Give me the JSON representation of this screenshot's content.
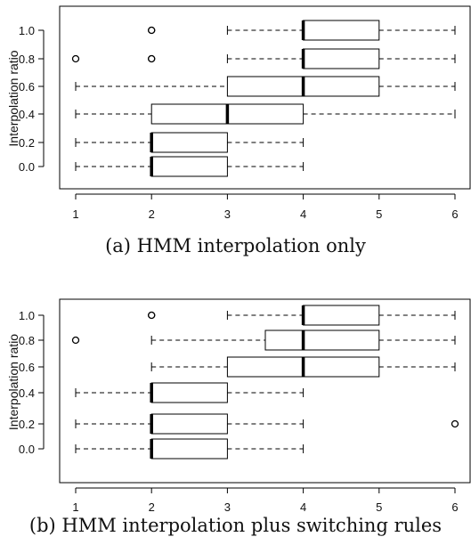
{
  "chart_data": [
    {
      "type": "boxplot",
      "orientation": "horizontal",
      "caption": "(a) HMM interpolation only",
      "ylabel": "Interpolation ratio",
      "xlabel": "",
      "xlim": [
        0.8,
        6.2
      ],
      "xticks": [
        1,
        2,
        3,
        4,
        5,
        6
      ],
      "categories": [
        "0.0",
        "0.2",
        "0.4",
        "0.6",
        "0.8",
        "1.0"
      ],
      "boxes": [
        {
          "category": "0.0",
          "min": 1,
          "q1": 2,
          "median": 2,
          "q3": 3,
          "max": 4,
          "outliers": []
        },
        {
          "category": "0.2",
          "min": 1,
          "q1": 2,
          "median": 2,
          "q3": 3,
          "max": 4,
          "outliers": []
        },
        {
          "category": "0.4",
          "min": 1,
          "q1": 2,
          "median": 3,
          "q3": 4,
          "max": 6,
          "outliers": []
        },
        {
          "category": "0.6",
          "min": 1,
          "q1": 3,
          "median": 4,
          "q3": 5,
          "max": 6,
          "outliers": []
        },
        {
          "category": "0.8",
          "min": 3,
          "q1": 4,
          "median": 4,
          "q3": 5,
          "max": 6,
          "outliers": [
            1,
            2,
            2
          ]
        },
        {
          "category": "1.0",
          "min": 3,
          "q1": 4,
          "median": 4,
          "q3": 5,
          "max": 6,
          "outliers": [
            2,
            2
          ]
        }
      ]
    },
    {
      "type": "boxplot",
      "orientation": "horizontal",
      "caption": "(b) HMM interpolation plus switching rules",
      "ylabel": "Interpolation ratio",
      "xlabel": "",
      "xlim": [
        0.8,
        6.2
      ],
      "xticks": [
        1,
        2,
        3,
        4,
        5,
        6
      ],
      "categories": [
        "0.0",
        "0.2",
        "0.4",
        "0.6",
        "0.8",
        "1.0"
      ],
      "boxes": [
        {
          "category": "0.0",
          "min": 1,
          "q1": 2,
          "median": 2,
          "q3": 3,
          "max": 4,
          "outliers": []
        },
        {
          "category": "0.2",
          "min": 1,
          "q1": 2,
          "median": 2,
          "q3": 3,
          "max": 4,
          "outliers": [
            6
          ]
        },
        {
          "category": "0.4",
          "min": 1,
          "q1": 2,
          "median": 2,
          "q3": 3,
          "max": 4,
          "outliers": []
        },
        {
          "category": "0.6",
          "min": 2,
          "q1": 3,
          "median": 4,
          "q3": 5,
          "max": 6,
          "outliers": []
        },
        {
          "category": "0.8",
          "min": 2,
          "q1": 3.5,
          "median": 4,
          "q3": 5,
          "max": 6,
          "outliers": [
            1
          ]
        },
        {
          "category": "1.0",
          "min": 3,
          "q1": 4,
          "median": 4,
          "q3": 5,
          "max": 6,
          "outliers": [
            2,
            2
          ]
        }
      ]
    }
  ]
}
